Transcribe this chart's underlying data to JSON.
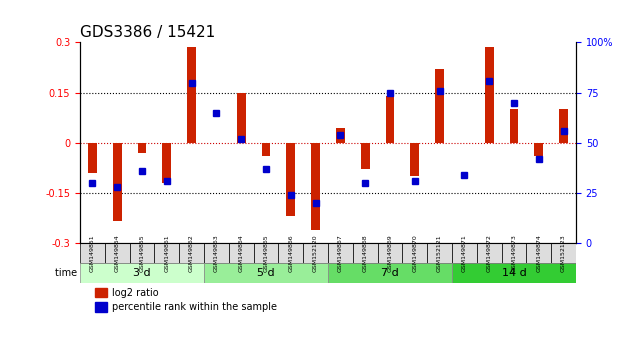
{
  "title": "GDS3386 / 15421",
  "samples": [
    "GSM149851",
    "GSM149854",
    "GSM149855",
    "GSM149861",
    "GSM149862",
    "GSM149863",
    "GSM149864",
    "GSM149865",
    "GSM149866",
    "GSM152120",
    "GSM149867",
    "GSM149868",
    "GSM149869",
    "GSM149870",
    "GSM152121",
    "GSM149871",
    "GSM149872",
    "GSM149873",
    "GSM149874",
    "GSM152123"
  ],
  "log2_ratio": [
    -0.09,
    -0.235,
    -0.03,
    -0.12,
    0.285,
    0.0,
    0.148,
    -0.04,
    -0.22,
    -0.26,
    0.045,
    -0.08,
    0.14,
    -0.1,
    0.22,
    0.0,
    0.285,
    0.1,
    -0.04,
    0.1
  ],
  "percentile_rank": [
    30,
    28,
    36,
    31,
    80,
    65,
    52,
    37,
    24,
    20,
    54,
    30,
    75,
    31,
    76,
    34,
    81,
    70,
    42,
    56
  ],
  "groups": [
    {
      "label": "3 d",
      "start": 0,
      "end": 5,
      "color": "#ccffcc"
    },
    {
      "label": "5 d",
      "start": 5,
      "end": 10,
      "color": "#99ee99"
    },
    {
      "label": "7 d",
      "start": 10,
      "end": 15,
      "color": "#66dd66"
    },
    {
      "label": "14 d",
      "start": 15,
      "end": 20,
      "color": "#33cc33"
    }
  ],
  "ylim_left": [
    -0.3,
    0.3
  ],
  "ylim_right": [
    0,
    100
  ],
  "bar_color_red": "#cc2200",
  "bar_color_blue": "#0000cc",
  "dotted_line_color": "#000000",
  "zero_line_color": "#cc0000",
  "bg_color": "#ffffff",
  "plot_bg_color": "#ffffff",
  "title_fontsize": 11,
  "tick_fontsize": 7
}
